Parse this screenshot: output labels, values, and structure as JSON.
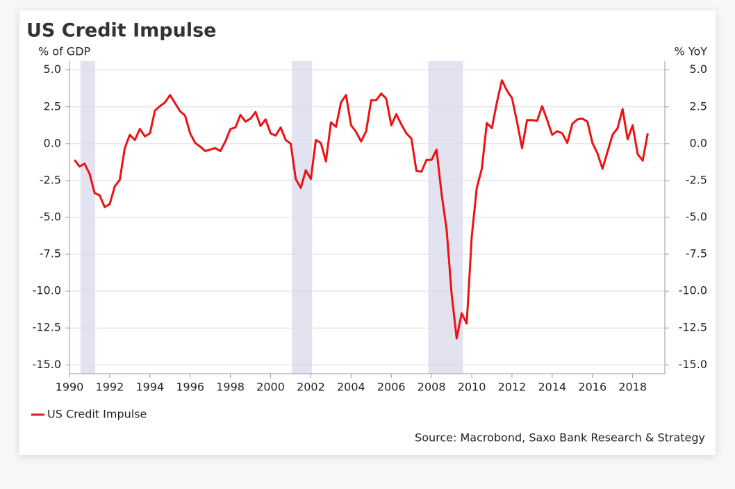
{
  "chart_data": {
    "type": "line",
    "title": "US Credit Impulse",
    "y_label": "% of GDP",
    "y2_label": "% YoY",
    "source": "Source: Macrobond, Saxo Bank Research & Strategy",
    "x": [
      1990.25,
      1990.5,
      1990.75,
      1991,
      1991.25,
      1991.5,
      1991.75,
      1992,
      1992.25,
      1992.5,
      1992.75,
      1993,
      1993.25,
      1993.5,
      1993.75,
      1994,
      1994.25,
      1994.5,
      1994.75,
      1995,
      1995.25,
      1995.5,
      1995.75,
      1996,
      1996.25,
      1996.5,
      1996.75,
      1997,
      1997.25,
      1997.5,
      1997.75,
      1998,
      1998.25,
      1998.5,
      1998.75,
      1999,
      1999.25,
      1999.5,
      1999.75,
      2000,
      2000.25,
      2000.5,
      2000.75,
      2001,
      2001.25,
      2001.5,
      2001.75,
      2002,
      2002.25,
      2002.5,
      2002.75,
      2003,
      2003.25,
      2003.5,
      2003.75,
      2004,
      2004.25,
      2004.5,
      2004.75,
      2005,
      2005.25,
      2005.5,
      2005.75,
      2006,
      2006.25,
      2006.5,
      2006.75,
      2007,
      2007.25,
      2007.5,
      2007.75,
      2008,
      2008.25,
      2008.5,
      2008.75,
      2009,
      2009.25,
      2009.5,
      2009.75,
      2010,
      2010.25,
      2010.5,
      2010.75,
      2011,
      2011.25,
      2011.5,
      2011.75,
      2012,
      2012.25,
      2012.5,
      2012.75,
      2013,
      2013.25,
      2013.5,
      2013.75,
      2014,
      2014.25,
      2014.5,
      2014.75,
      2015,
      2015.25,
      2015.5,
      2015.75,
      2016,
      2016.25,
      2016.5,
      2016.75,
      2017,
      2017.25,
      2017.5,
      2017.75,
      2018,
      2018.25,
      2018.5,
      2018.75
    ],
    "series": [
      {
        "name": "US Credit Impulse",
        "color": "#ee1111",
        "values": [
          -1.1,
          -1.55,
          -1.35,
          -2.05,
          -3.35,
          -3.5,
          -4.3,
          -4.1,
          -2.9,
          -2.45,
          -0.3,
          0.6,
          0.25,
          1.0,
          0.5,
          0.7,
          2.25,
          2.55,
          2.8,
          3.3,
          2.75,
          2.2,
          1.9,
          0.7,
          0.05,
          -0.2,
          -0.5,
          -0.4,
          -0.3,
          -0.5,
          0.15,
          1.0,
          1.1,
          1.95,
          1.5,
          1.7,
          2.15,
          1.2,
          1.65,
          0.7,
          0.55,
          1.1,
          0.25,
          0.0,
          -2.4,
          -3.0,
          -1.8,
          -2.4,
          0.25,
          0.05,
          -1.2,
          1.45,
          1.15,
          2.8,
          3.3,
          1.25,
          0.8,
          0.15,
          0.85,
          2.95,
          2.95,
          3.4,
          3.05,
          1.25,
          2.0,
          1.3,
          0.7,
          0.35,
          -1.85,
          -1.9,
          -1.1,
          -1.1,
          -0.4,
          -3.4,
          -5.8,
          -10.2,
          -13.2,
          -11.5,
          -12.2,
          -6.3,
          -3.0,
          -1.7,
          1.4,
          1.05,
          2.8,
          4.3,
          3.6,
          3.1,
          1.5,
          -0.3,
          1.6,
          1.6,
          1.55,
          2.55,
          1.6,
          0.6,
          0.85,
          0.7,
          0.05,
          1.35,
          1.65,
          1.7,
          1.5,
          0.05,
          -0.65,
          -1.7,
          -0.55,
          0.6,
          1.05,
          2.35,
          0.3,
          1.25,
          -0.7,
          -1.15,
          0.7
        ]
      }
    ],
    "recessions": [
      [
        1990.55,
        1991.28
      ],
      [
        2001.06,
        2002.06
      ],
      [
        2007.84,
        2009.56
      ]
    ],
    "recession_color": "#e2e2f1",
    "xlim": [
      1990,
      2019.6
    ],
    "xticks": [
      1990,
      1992,
      1994,
      1996,
      1998,
      2000,
      2002,
      2004,
      2006,
      2008,
      2010,
      2012,
      2014,
      2016,
      2018
    ],
    "ylim": [
      -15.6,
      5.6
    ],
    "yticks": [
      {
        "value": 5,
        "label": "5.0"
      },
      {
        "value": 2.5,
        "label": "2.5"
      },
      {
        "value": 0,
        "label": "0.0"
      },
      {
        "value": -2.5,
        "label": "-2.5"
      },
      {
        "value": -5,
        "label": "-5.0"
      },
      {
        "value": -7.5,
        "label": "-7.5"
      },
      {
        "value": -10,
        "label": "-10.0"
      },
      {
        "value": -12.5,
        "label": "-12.5"
      },
      {
        "value": -15,
        "label": "-15.0"
      }
    ],
    "y2lim": [
      -15.6,
      5.6
    ],
    "y2ticks": [
      {
        "value": 5,
        "label": "5.0"
      },
      {
        "value": 2.5,
        "label": "2.5"
      },
      {
        "value": 0,
        "label": "0.0"
      },
      {
        "value": -2.5,
        "label": "-2.5"
      },
      {
        "value": -5,
        "label": "-5.0"
      },
      {
        "value": -7.5,
        "label": "-7.5"
      },
      {
        "value": -10,
        "label": "-10.0"
      },
      {
        "value": -12.5,
        "label": "-12.5"
      },
      {
        "value": -15,
        "label": "-15.0"
      }
    ],
    "grid": true
  }
}
